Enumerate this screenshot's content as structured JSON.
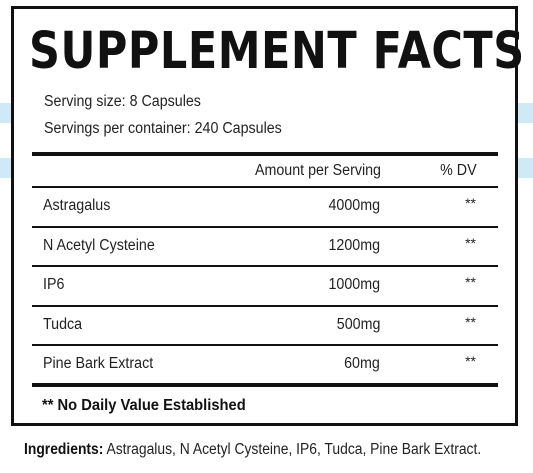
{
  "label": {
    "title": "SUPPLEMENT FACTS",
    "serving_size": "Serving size: 8 Capsules",
    "servings_per_container": "Servings per container: 240 Capsules",
    "columns": {
      "amount": "Amount per Serving",
      "dv": "% DV"
    },
    "rows": [
      {
        "name": "Astragalus",
        "amount": "4000mg",
        "dv": "**"
      },
      {
        "name": "N Acetyl Cysteine",
        "amount": "1200mg",
        "dv": "**"
      },
      {
        "name": "IP6",
        "amount": "1000mg",
        "dv": "**"
      },
      {
        "name": "Tudca",
        "amount": "500mg",
        "dv": "**"
      },
      {
        "name": "Pine Bark Extract",
        "amount": "60mg",
        "dv": "**"
      }
    ],
    "footnote": "** No Daily Value Established"
  },
  "ingredients": {
    "label": "Ingredients:",
    "text": " Astragalus, N Acetyl Cysteine, IP6, Tudca, Pine Bark Extract."
  },
  "colors": {
    "stripe": "#cfe9f7",
    "ink": "#111111"
  }
}
